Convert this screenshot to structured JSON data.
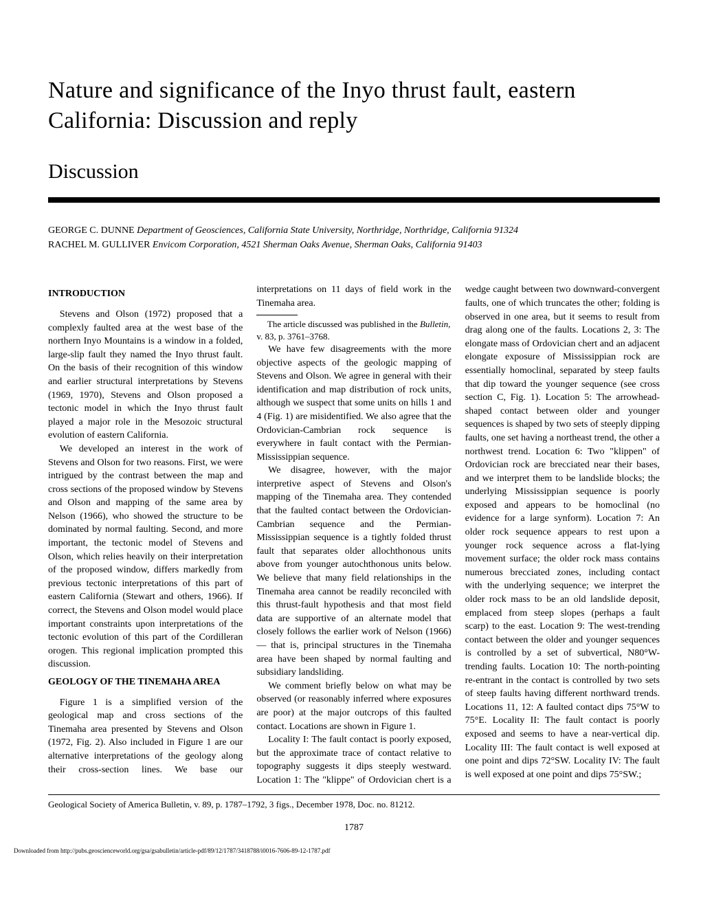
{
  "title": "Nature and significance of the Inyo thrust fault, eastern California: Discussion and reply",
  "section_header": "Discussion",
  "authors": {
    "line1_name": "GEORGE C. DUNNE",
    "line1_affil": "  Department of Geosciences, California State University, Northridge, Northridge, California 91324",
    "line2_name": "RACHEL M. GULLIVER",
    "line2_affil": "  Envicom Corporation, 4521 Sherman Oaks Avenue, Sherman Oaks, California 91403"
  },
  "headings": {
    "intro": "INTRODUCTION",
    "geology": "GEOLOGY OF THE TINEMAHA AREA"
  },
  "paragraphs": {
    "p1": "Stevens and Olson (1972) proposed that a complexly faulted area at the west base of the northern Inyo Mountains is a window in a folded, large-slip fault they named the Inyo thrust fault. On the basis of their recognition of this window and earlier structural interpretations by Stevens (1969, 1970), Stevens and Olson proposed a tectonic model in which the Inyo thrust fault played a major role in the Mesozoic structural evolution of eastern California.",
    "p2": "We developed an interest in the work of Stevens and Olson for two reasons. First, we were intrigued by the contrast between the map and cross sections of the proposed window by Stevens and Olson and mapping of the same area by Nelson (1966), who showed the structure to be dominated by normal faulting. Second, and more important, the tectonic model of Stevens and Olson, which relies heavily on their interpretation of the proposed window, differs markedly from previous tectonic interpretations of this part of eastern California (Stewart and others, 1966). If correct, the Stevens and Olson model would place important constraints upon interpretations of the tectonic evolution of this part of the Cordilleran orogen. This regional implication prompted this discussion.",
    "p3": "Figure 1 is a simplified version of the geological map and cross sections of the Tinemaha area presented by Stevens and Olson (1972, Fig. 2). Also included in Figure 1 are our alternative interpretations of the geology along their cross-section lines. We base our interpretations on 11 days of field work in the Tinemaha area.",
    "p4": "We have few disagreements with the more objective aspects of the geologic mapping of Stevens and Olson. We agree in general with their identification and map distribution of rock units, although we suspect that some units on hills 1 and 4 (Fig. 1) are misidentified. We also agree that the Ordovician-Cambrian rock sequence is everywhere in fault contact with the Permian-Mississippian sequence.",
    "p5": "We disagree, however, with the major interpretive aspect of Stevens and Olson's mapping of the Tinemaha area. They contended that the faulted contact between the Ordovician-Cambrian sequence and the Permian-Mississippian sequence is a tightly folded thrust fault that separates older allochthonous units above from younger autochthonous units below. We believe that many field relationships in the Tinemaha area cannot be readily reconciled with this thrust-fault hypothesis and that most field data are supportive of an alternate model that closely follows the earlier work of Nelson (1966) — that is, principal structures in the Tinemaha area have been shaped by normal faulting and subsidiary landsliding.",
    "p6": "We comment briefly below on what may be observed (or reasonably inferred where exposures are poor) at the major outcrops of this faulted contact. Locations are shown in Figure 1.",
    "p7": "Locality I: The fault contact is poorly exposed, but the approximate trace of contact relative to topography suggests it dips steeply westward. Location 1: The \"klippe\" of Ordovician chert is a wedge caught between two downward-convergent faults, one of which truncates the other; folding is observed in one area, but it seems to result from drag along one of the faults. Locations 2, 3: The elongate mass of Ordovician chert and an adjacent elongate exposure of Mississippian rock are essentially homoclinal, separated by steep faults that dip toward the younger sequence (see cross section C, Fig. 1). Location 5: The arrowhead-shaped contact between older and younger sequences is shaped by two sets of steeply dipping faults, one set having a northeast trend, the other a northwest trend. Location 6: Two \"klippen\" of Ordovician rock are brecciated near their bases, and we interpret them to be landslide blocks; the underlying Mississippian sequence is poorly exposed and appears to be homoclinal (no evidence for a large synform). Location 7: An older rock sequence appears to rest upon a younger rock sequence across a flat-lying movement surface; the older rock mass contains numerous brecciated zones, including contact with the underlying sequence; we interpret the older rock mass to be an old landslide deposit, emplaced from steep slopes (perhaps a fault scarp) to the east. Location 9: The west-trending contact between the older and younger sequences is controlled by a set of subvertical, N80°W-trending faults. Location 10: The north-pointing re-entrant in the contact is controlled by two sets of steep faults having different northward trends. Locations 11, 12: A faulted contact dips 75°W to 75°E. Locality II: The fault contact is poorly exposed and seems to have a near-vertical dip. Locality III: The fault contact is well exposed at one point and dips 72°SW. Locality IV: The fault is well exposed at one point and dips 75°SW.;"
  },
  "footnote": {
    "text_before": "The article discussed was published in the ",
    "italic": "Bulletin,",
    "text_after": " v. 83, p. 3761–3768."
  },
  "citation": "Geological Society of America Bulletin, v. 89, p. 1787–1792, 3 figs., December 1978, Doc. no. 81212.",
  "page_number": "1787",
  "download": "Downloaded from http://pubs.geoscienceworld.org/gsa/gsabulletin/article-pdf/89/12/1787/3418788/i0016-7606-89-12-1787.pdf"
}
